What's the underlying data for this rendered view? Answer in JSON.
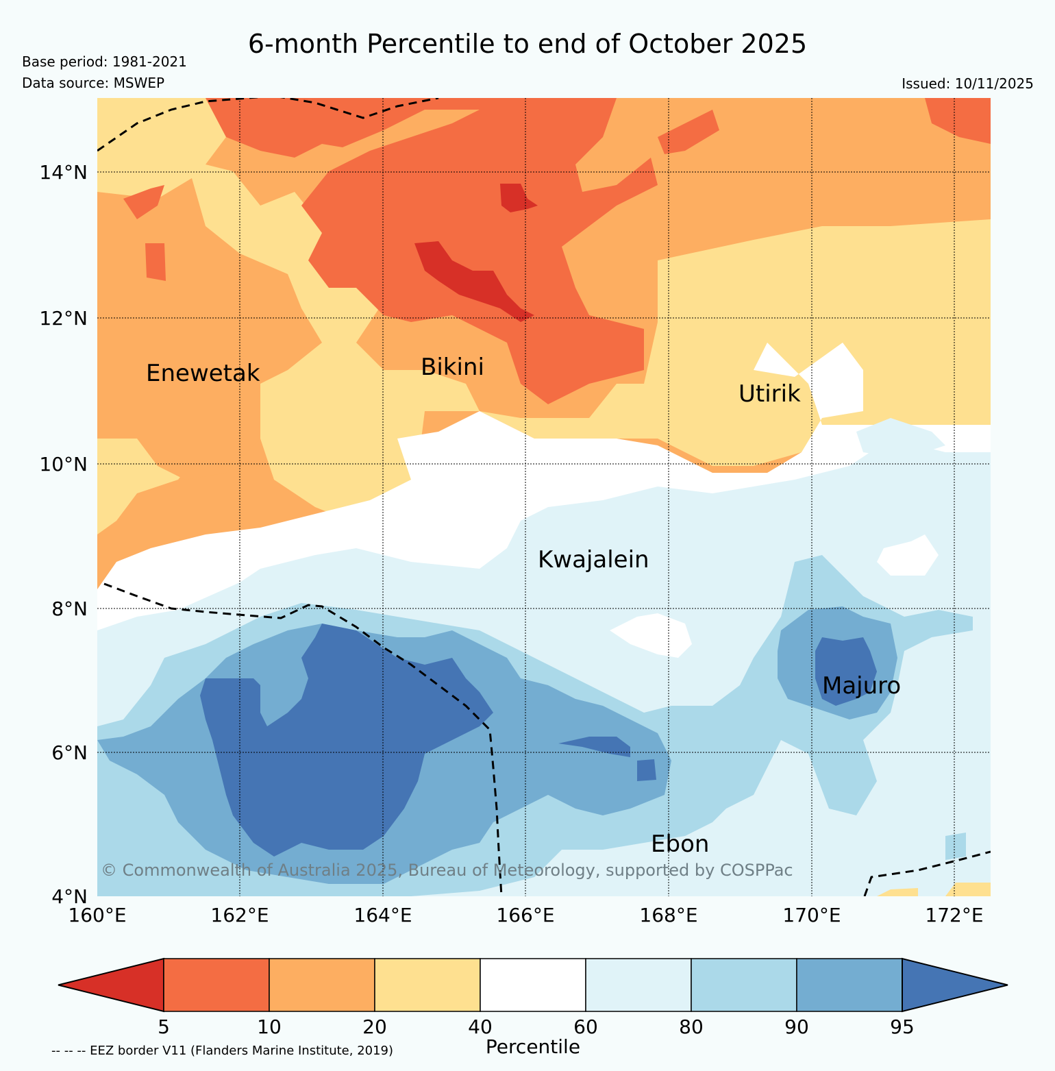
{
  "header": {
    "title": "6-month Percentile to end of October 2025",
    "base_period": "Base period: 1981-2021",
    "data_source": "Data source: MSWEP",
    "issued": "Issued: 10/11/2025"
  },
  "map": {
    "lat_labels": [
      "14°N",
      "12°N",
      "10°N",
      "8°N",
      "6°N",
      "4°N"
    ],
    "lon_labels": [
      "160°E",
      "162°E",
      "164°E",
      "166°E",
      "168°E",
      "170°E",
      "172°E"
    ],
    "places": [
      "Enewetak",
      "Bikini",
      "Utirik",
      "Kwajalein",
      "Majuro",
      "Ebon"
    ],
    "copyright": "© Commonwealth of Australia 2025, Bureau of Meteorology, supported by COSPPac"
  },
  "colorbar": {
    "ticks": [
      "5",
      "10",
      "20",
      "40",
      "60",
      "80",
      "90",
      "95"
    ],
    "title": "Percentile",
    "colors": [
      "#d73027",
      "#f46d43",
      "#fdae61",
      "#fee090",
      "#ffffff",
      "#e0f3f8",
      "#abd9e9",
      "#74add1",
      "#4575b4"
    ]
  },
  "legend_note": "-- -- -- EEZ border V11 (Flanders Marine Institute, 2019)"
}
